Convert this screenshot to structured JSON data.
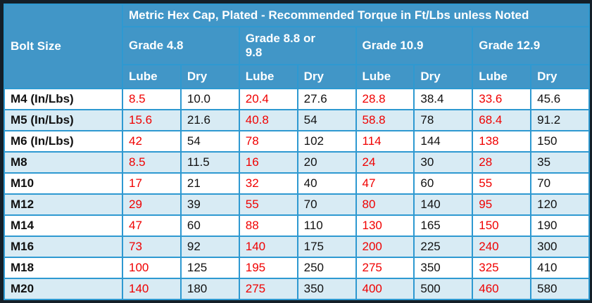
{
  "chart_data": {
    "type": "table",
    "title": "Metric Hex Cap, Plated - Recommended Torque in Ft/Lbs unless Noted",
    "corner_header": "Bolt Size",
    "column_groups": [
      "Grade 4.8",
      "Grade 8.8 or 9.8",
      "Grade 10.9",
      "Grade 12.9"
    ],
    "sub_columns": [
      "Lube",
      "Dry",
      "Lube",
      "Dry",
      "Lube",
      "Dry",
      "Lube",
      "Dry"
    ],
    "rows": [
      {
        "bolt_size": "M4 (In/Lbs)",
        "values": [
          "8.5",
          "10.0",
          "20.4",
          "27.6",
          "28.8",
          "38.4",
          "33.6",
          "45.6"
        ]
      },
      {
        "bolt_size": "M5 (In/Lbs)",
        "values": [
          "15.6",
          "21.6",
          "40.8",
          "54",
          "58.8",
          "78",
          "68.4",
          "91.2"
        ]
      },
      {
        "bolt_size": "M6 (In/Lbs)",
        "values": [
          "42",
          "54",
          "78",
          "102",
          "114",
          "144",
          "138",
          "150"
        ]
      },
      {
        "bolt_size": "M8",
        "values": [
          "8.5",
          "11.5",
          "16",
          "20",
          "24",
          "30",
          "28",
          "35"
        ]
      },
      {
        "bolt_size": "M10",
        "values": [
          "17",
          "21",
          "32",
          "40",
          "47",
          "60",
          "55",
          "70"
        ]
      },
      {
        "bolt_size": "M12",
        "values": [
          "29",
          "39",
          "55",
          "70",
          "80",
          "140",
          "95",
          "120"
        ]
      },
      {
        "bolt_size": "M14",
        "values": [
          "47",
          "60",
          "88",
          "110",
          "130",
          "165",
          "150",
          "190"
        ]
      },
      {
        "bolt_size": "M16",
        "values": [
          "73",
          "92",
          "140",
          "175",
          "200",
          "225",
          "240",
          "300"
        ]
      },
      {
        "bolt_size": "M18",
        "values": [
          "100",
          "125",
          "195",
          "250",
          "275",
          "350",
          "325",
          "410"
        ]
      },
      {
        "bolt_size": "M20",
        "values": [
          "140",
          "180",
          "275",
          "350",
          "400",
          "500",
          "460",
          "580"
        ]
      }
    ],
    "value_color_legend": {
      "lube_columns": "red text",
      "dry_columns": "black text"
    }
  },
  "colors": {
    "frame": "#141f28",
    "header_bg": "#4196c7",
    "grid": "#2e99d1",
    "row_alt_bg": "#d8ebf4",
    "row_bg": "#ffffff",
    "header_text": "#ffffff",
    "lube_value": "#f00000",
    "value_text": "#111111",
    "bolt_text": "#111111"
  }
}
